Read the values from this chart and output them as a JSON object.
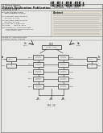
{
  "bg_color": "#f0f0ec",
  "page_bg": "#e8e8e4",
  "barcode_color": "#111111",
  "text_color": "#222222",
  "light_gray": "#bbbbbb",
  "mid_gray": "#777777",
  "diagram_color": "#333333",
  "header_left": [
    "(( United States",
    "Patent Application Publication",
    "Greenley et al."
  ],
  "header_right": [
    "Pub. No.: US 2013/0038888 A1",
    "Pub. Date:    Feb. 7, 2013"
  ],
  "field_rows": [
    [
      "(54)",
      "OFF-CENTER ANGLE MEASUREMENT SYSTEM"
    ],
    [
      "(71)",
      "Applicant: ..."
    ],
    [
      "(72)",
      "Inventors: ..."
    ],
    [
      "(21)",
      "Appl. No.: 13/492,614"
    ],
    [
      "(22)",
      "Filed:    June 14, 2012"
    ],
    [
      "(60)",
      "Related U.S. Application Data"
    ]
  ],
  "abstract_label": "Abstract",
  "fig_label": "FIG. 10",
  "top_label": "1000",
  "left_col_labels": [
    "1050a",
    "1052a",
    "1054a",
    "1056a",
    "1058a"
  ],
  "right_col_labels": [
    "1050b",
    "1052b",
    "1054b",
    "1056b",
    "1058b"
  ],
  "bottom_labels": [
    "1060a",
    "1060c",
    "1060b"
  ],
  "input_labels": [
    "θa",
    "θb"
  ],
  "output_labels": [
    "φa",
    "φc",
    "φb"
  ],
  "side_left_labels": [
    "1010a",
    "1020a"
  ],
  "side_right_labels": [
    "1010b",
    "1020b"
  ]
}
